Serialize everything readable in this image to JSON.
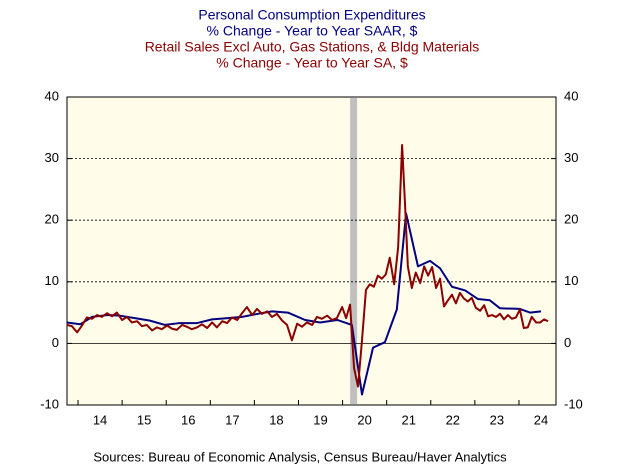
{
  "chart_data": {
    "type": "line",
    "titles": [
      {
        "text": "Personal Consumption Expenditures",
        "color": "#000080"
      },
      {
        "text": "% Change - Year to Year    SAAR, $",
        "color": "#000080"
      },
      {
        "text": "Retail Sales Excl Auto, Gas Stations, & Bldg Materials",
        "color": "#8b0000"
      },
      {
        "text": "% Change - Year to Year    SA, $",
        "color": "#8b0000"
      }
    ],
    "source": "Sources:  Bureau of Economic Analysis, Census Bureau/Haver Analytics",
    "xlim": [
      2013.75,
      2024.84
    ],
    "xticks": [
      {
        "value": 2014,
        "label": "14"
      },
      {
        "value": 2015,
        "label": "15"
      },
      {
        "value": 2016,
        "label": "16"
      },
      {
        "value": 2017,
        "label": "17"
      },
      {
        "value": 2018,
        "label": "18"
      },
      {
        "value": 2019,
        "label": "19"
      },
      {
        "value": 2020,
        "label": "20"
      },
      {
        "value": 2021,
        "label": "21"
      },
      {
        "value": 2022,
        "label": "22"
      },
      {
        "value": 2023,
        "label": "23"
      },
      {
        "value": 2024,
        "label": "24"
      }
    ],
    "ylim": [
      -10,
      40
    ],
    "yticks": [
      -10,
      0,
      10,
      20,
      30,
      40
    ],
    "y2lim": [
      -10,
      40
    ],
    "y2ticks": [
      -10,
      0,
      10,
      20,
      30,
      40
    ],
    "grid": true,
    "shading": [
      2020.17,
      2020.33
    ],
    "series": [
      {
        "name": "Personal Consumption Expenditures",
        "color": "#000080",
        "x": [
          2013.75,
          2014.05,
          2014.32,
          2014.66,
          2014.95,
          2015.29,
          2015.63,
          2015.97,
          2016.31,
          2016.7,
          2017.04,
          2017.4,
          2017.72,
          2018.08,
          2018.4,
          2018.76,
          2019.15,
          2019.49,
          2019.88,
          2020.21,
          2020.44,
          2020.69,
          2020.96,
          2021.23,
          2021.44,
          2021.71,
          2021.98,
          2022.21,
          2022.48,
          2022.78,
          2023.07,
          2023.34,
          2023.57,
          2024.02,
          2024.25,
          2024.5
        ],
        "values": [
          3.4,
          3.1,
          4.3,
          4.6,
          4.5,
          4.1,
          3.7,
          3.0,
          3.3,
          3.3,
          3.9,
          4.1,
          4.3,
          4.8,
          5.2,
          5.0,
          3.8,
          3.4,
          3.8,
          3.0,
          -8.3,
          -0.7,
          0.2,
          5.5,
          21.1,
          12.5,
          13.4,
          12.2,
          9.2,
          8.6,
          7.2,
          7.0,
          5.7,
          5.6,
          5.0,
          5.2
        ]
      },
      {
        "name": "Retail Sales Excl Auto, Gas Stations, & Bldg Materials",
        "color": "#8b0000",
        "x": [
          2013.75,
          2013.86,
          2013.98,
          2014.09,
          2014.2,
          2014.32,
          2014.43,
          2014.54,
          2014.66,
          2014.77,
          2014.88,
          2015.0,
          2015.11,
          2015.22,
          2015.34,
          2015.45,
          2015.56,
          2015.68,
          2015.79,
          2015.9,
          2016.02,
          2016.13,
          2016.24,
          2016.36,
          2016.47,
          2016.58,
          2016.7,
          2016.81,
          2016.93,
          2017.04,
          2017.15,
          2017.27,
          2017.38,
          2017.49,
          2017.61,
          2017.72,
          2017.83,
          2017.95,
          2018.06,
          2018.17,
          2018.29,
          2018.4,
          2018.51,
          2018.63,
          2018.74,
          2018.85,
          2018.97,
          2019.08,
          2019.19,
          2019.31,
          2019.42,
          2019.53,
          2019.65,
          2019.76,
          2019.87,
          2019.99,
          2020.08,
          2020.17,
          2020.26,
          2020.35,
          2020.44,
          2020.53,
          2020.62,
          2020.71,
          2020.8,
          2020.89,
          2020.98,
          2021.07,
          2021.17,
          2021.26,
          2021.35,
          2021.42,
          2021.48,
          2021.57,
          2021.66,
          2021.76,
          2021.85,
          2021.94,
          2022.03,
          2022.12,
          2022.21,
          2022.3,
          2022.39,
          2022.48,
          2022.57,
          2022.66,
          2022.75,
          2022.84,
          2022.93,
          2023.02,
          2023.12,
          2023.21,
          2023.3,
          2023.39,
          2023.48,
          2023.57,
          2023.66,
          2023.75,
          2023.84,
          2023.93,
          2024.02,
          2024.11,
          2024.2,
          2024.29,
          2024.39,
          2024.48,
          2024.57,
          2024.66
        ],
        "values": [
          3.0,
          2.8,
          1.8,
          2.9,
          4.2,
          4.0,
          4.6,
          4.3,
          4.9,
          4.4,
          5.0,
          3.8,
          4.3,
          3.4,
          3.6,
          2.8,
          3.0,
          2.1,
          2.6,
          2.3,
          2.9,
          2.4,
          2.2,
          3.0,
          2.7,
          2.3,
          2.6,
          3.1,
          2.5,
          3.4,
          2.6,
          3.6,
          3.3,
          4.2,
          3.8,
          4.9,
          5.9,
          4.6,
          5.6,
          4.8,
          5.2,
          4.3,
          4.8,
          3.7,
          3.0,
          0.5,
          3.2,
          2.7,
          3.4,
          3.0,
          4.3,
          4.0,
          4.5,
          3.8,
          4.1,
          5.9,
          4.1,
          6.3,
          -4.0,
          -7.0,
          0.5,
          8.7,
          9.6,
          9.2,
          11.0,
          10.5,
          11.2,
          13.9,
          9.6,
          15.6,
          32.2,
          22.0,
          12.5,
          9.0,
          11.5,
          9.8,
          12.5,
          11.0,
          12.4,
          9.0,
          10.5,
          6.0,
          7.0,
          7.9,
          6.5,
          8.2,
          7.3,
          6.8,
          7.4,
          5.8,
          5.3,
          6.2,
          4.4,
          4.6,
          4.3,
          4.8,
          3.9,
          4.6,
          4.0,
          4.2,
          5.5,
          2.5,
          2.6,
          4.3,
          3.4,
          3.4,
          3.9,
          3.6
        ]
      }
    ]
  }
}
